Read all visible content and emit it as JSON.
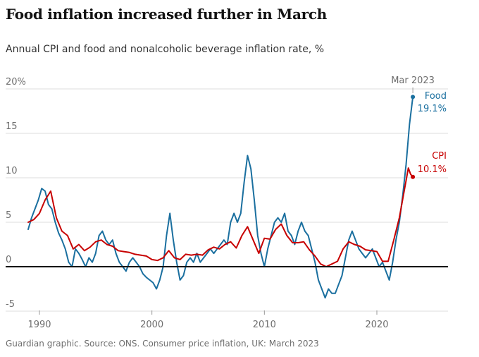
{
  "header": {
    "title": "Food inflation increased further in March",
    "subtitle": "Annual CPI and food and nonalcoholic beverage inflation rate, %"
  },
  "footer": {
    "source": "Guardian graphic. Source: ONS. Consumer price inflation, UK: March 2023"
  },
  "colors": {
    "food": "#1a6f9f",
    "cpi": "#c70000",
    "grid": "#dcdcdc",
    "zero": "#121212"
  },
  "chart_data": {
    "type": "line",
    "title": "Food inflation increased further in March",
    "subtitle": "Annual CPI and food and nonalcoholic beverage inflation rate, %",
    "xlabel": "",
    "ylabel": "%",
    "xlim": [
      1988.5,
      2024.8
    ],
    "ylim": [
      -5,
      20
    ],
    "y_ticks": [
      {
        "value": 20,
        "label": "20%"
      },
      {
        "value": 15,
        "label": "15"
      },
      {
        "value": 10,
        "label": "10"
      },
      {
        "value": 5,
        "label": "5"
      },
      {
        "value": 0,
        "label": "0"
      },
      {
        "value": -5,
        "label": "-5"
      }
    ],
    "x_ticks": [
      {
        "value": 1990,
        "label": "1990"
      },
      {
        "value": 2000,
        "label": "2000"
      },
      {
        "value": 2010,
        "label": "2010"
      },
      {
        "value": 2020,
        "label": "2020"
      }
    ],
    "latest_label": "Mar 2023",
    "series": [
      {
        "name": "Food",
        "end_label": "Food",
        "end_value_label": "19.1%",
        "x": [
          1989.0,
          1989.3,
          1989.6,
          1989.9,
          1990.2,
          1990.5,
          1990.8,
          1991.1,
          1991.4,
          1991.7,
          1992.0,
          1992.3,
          1992.6,
          1992.9,
          1993.2,
          1993.5,
          1993.8,
          1994.1,
          1994.4,
          1994.7,
          1995.0,
          1995.3,
          1995.6,
          1995.9,
          1996.2,
          1996.5,
          1996.8,
          1997.1,
          1997.4,
          1997.7,
          1998.0,
          1998.3,
          1998.6,
          1998.9,
          1999.2,
          1999.5,
          1999.8,
          2000.1,
          2000.4,
          2000.7,
          2001.0,
          2001.3,
          2001.6,
          2001.9,
          2002.2,
          2002.5,
          2002.8,
          2003.1,
          2003.4,
          2003.7,
          2004.0,
          2004.3,
          2004.6,
          2004.9,
          2005.2,
          2005.5,
          2005.8,
          2006.1,
          2006.4,
          2006.7,
          2007.0,
          2007.3,
          2007.6,
          2007.9,
          2008.2,
          2008.5,
          2008.8,
          2009.1,
          2009.4,
          2009.7,
          2010.0,
          2010.3,
          2010.6,
          2010.9,
          2011.2,
          2011.5,
          2011.8,
          2012.1,
          2012.4,
          2012.7,
          2013.0,
          2013.3,
          2013.6,
          2013.9,
          2014.2,
          2014.5,
          2014.8,
          2015.1,
          2015.4,
          2015.7,
          2016.0,
          2016.3,
          2016.6,
          2016.9,
          2017.2,
          2017.5,
          2017.8,
          2018.1,
          2018.4,
          2018.7,
          2019.0,
          2019.3,
          2019.6,
          2019.9,
          2020.2,
          2020.5,
          2020.8,
          2021.1,
          2021.4,
          2021.7,
          2022.0,
          2022.3,
          2022.6,
          2022.9,
          2023.2
        ],
        "values": [
          4.2,
          5.5,
          6.5,
          7.5,
          8.8,
          8.5,
          7.0,
          6.5,
          5.0,
          3.8,
          3.0,
          2.0,
          0.5,
          0.0,
          2.0,
          1.5,
          0.8,
          0.0,
          1.0,
          0.5,
          1.5,
          3.5,
          4.0,
          3.0,
          2.5,
          3.0,
          1.5,
          0.5,
          0.0,
          -0.5,
          0.5,
          1.0,
          0.5,
          0.0,
          -0.8,
          -1.2,
          -1.5,
          -1.8,
          -2.5,
          -1.5,
          0.0,
          3.5,
          6.0,
          3.0,
          0.5,
          -1.5,
          -1.0,
          0.5,
          1.0,
          0.5,
          1.5,
          0.5,
          1.0,
          1.5,
          2.0,
          1.5,
          2.0,
          2.5,
          3.0,
          2.5,
          5.0,
          6.0,
          5.0,
          6.0,
          9.5,
          12.5,
          11.0,
          7.5,
          3.5,
          1.5,
          0.0,
          2.0,
          3.5,
          5.0,
          5.5,
          5.0,
          6.0,
          4.0,
          3.5,
          2.5,
          4.0,
          5.0,
          4.0,
          3.5,
          2.0,
          0.5,
          -1.5,
          -2.5,
          -3.5,
          -2.5,
          -3.0,
          -3.0,
          -2.0,
          -1.0,
          1.0,
          3.0,
          4.0,
          3.0,
          2.0,
          1.5,
          1.0,
          1.5,
          2.0,
          1.0,
          0.0,
          0.5,
          -0.5,
          -1.5,
          0.5,
          3.0,
          5.0,
          8.0,
          11.5,
          16.0,
          19.1
        ]
      },
      {
        "name": "CPI",
        "end_label": "CPI",
        "end_value_label": "10.1%",
        "x": [
          1989.0,
          1989.5,
          1990.0,
          1990.5,
          1991.0,
          1991.5,
          1992.0,
          1992.5,
          1993.0,
          1993.5,
          1994.0,
          1994.5,
          1995.0,
          1995.5,
          1996.0,
          1996.5,
          1997.0,
          1997.5,
          1998.0,
          1998.5,
          1999.0,
          1999.5,
          2000.0,
          2000.5,
          2001.0,
          2001.5,
          2002.0,
          2002.5,
          2003.0,
          2003.5,
          2004.0,
          2004.5,
          2005.0,
          2005.5,
          2006.0,
          2006.5,
          2007.0,
          2007.5,
          2008.0,
          2008.5,
          2009.0,
          2009.5,
          2010.0,
          2010.5,
          2011.0,
          2011.5,
          2012.0,
          2012.5,
          2013.0,
          2013.5,
          2014.0,
          2014.5,
          2015.0,
          2015.5,
          2016.0,
          2016.5,
          2017.0,
          2017.5,
          2018.0,
          2018.5,
          2019.0,
          2019.5,
          2020.0,
          2020.5,
          2021.0,
          2021.5,
          2022.0,
          2022.5,
          2022.8,
          2023.0,
          2023.2
        ],
        "values": [
          5.0,
          5.3,
          6.0,
          7.5,
          8.5,
          5.5,
          4.0,
          3.5,
          2.0,
          2.5,
          1.8,
          2.2,
          2.8,
          3.0,
          2.5,
          2.3,
          1.8,
          1.7,
          1.6,
          1.4,
          1.3,
          1.2,
          0.8,
          0.7,
          1.0,
          1.8,
          1.0,
          0.8,
          1.4,
          1.3,
          1.4,
          1.3,
          1.9,
          2.2,
          2.0,
          2.5,
          2.8,
          2.1,
          3.5,
          4.5,
          3.0,
          1.5,
          3.2,
          3.1,
          4.2,
          4.8,
          3.5,
          2.7,
          2.7,
          2.8,
          1.9,
          1.2,
          0.3,
          0.0,
          0.3,
          0.6,
          2.0,
          2.8,
          2.5,
          2.3,
          1.9,
          1.8,
          1.7,
          0.6,
          0.6,
          3.0,
          5.5,
          9.0,
          11.1,
          10.4,
          10.1
        ]
      }
    ]
  }
}
